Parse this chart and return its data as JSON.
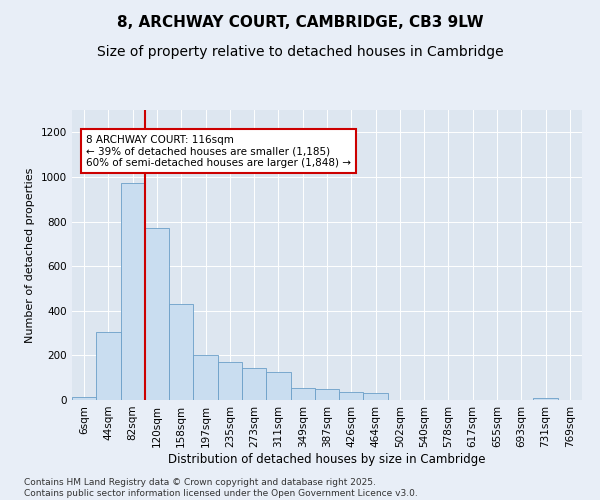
{
  "title": "8, ARCHWAY COURT, CAMBRIDGE, CB3 9LW",
  "subtitle": "Size of property relative to detached houses in Cambridge",
  "xlabel": "Distribution of detached houses by size in Cambridge",
  "ylabel": "Number of detached properties",
  "bar_labels": [
    "6sqm",
    "44sqm",
    "82sqm",
    "120sqm",
    "158sqm",
    "197sqm",
    "235sqm",
    "273sqm",
    "311sqm",
    "349sqm",
    "387sqm",
    "426sqm",
    "464sqm",
    "502sqm",
    "540sqm",
    "578sqm",
    "617sqm",
    "655sqm",
    "693sqm",
    "731sqm",
    "769sqm"
  ],
  "bar_values": [
    15,
    305,
    975,
    770,
    430,
    200,
    170,
    145,
    125,
    55,
    50,
    35,
    30,
    0,
    0,
    0,
    0,
    0,
    0,
    10,
    0
  ],
  "bar_color": "#c9ddf0",
  "bar_edge_color": "#6b9fc8",
  "red_line_x": 2.5,
  "annotation_text": "8 ARCHWAY COURT: 116sqm\n← 39% of detached houses are smaller (1,185)\n60% of semi-detached houses are larger (1,848) →",
  "annotation_box_color": "#ffffff",
  "annotation_box_edge": "#cc0000",
  "line_color": "#cc0000",
  "ylim": [
    0,
    1300
  ],
  "yticks": [
    0,
    200,
    400,
    600,
    800,
    1000,
    1200
  ],
  "plot_bg_color": "#dde6f0",
  "fig_bg_color": "#e8eef7",
  "footer": "Contains HM Land Registry data © Crown copyright and database right 2025.\nContains public sector information licensed under the Open Government Licence v3.0.",
  "title_fontsize": 11,
  "subtitle_fontsize": 10,
  "xlabel_fontsize": 8.5,
  "ylabel_fontsize": 8,
  "tick_fontsize": 7.5,
  "footer_fontsize": 6.5,
  "annot_fontsize": 7.5
}
